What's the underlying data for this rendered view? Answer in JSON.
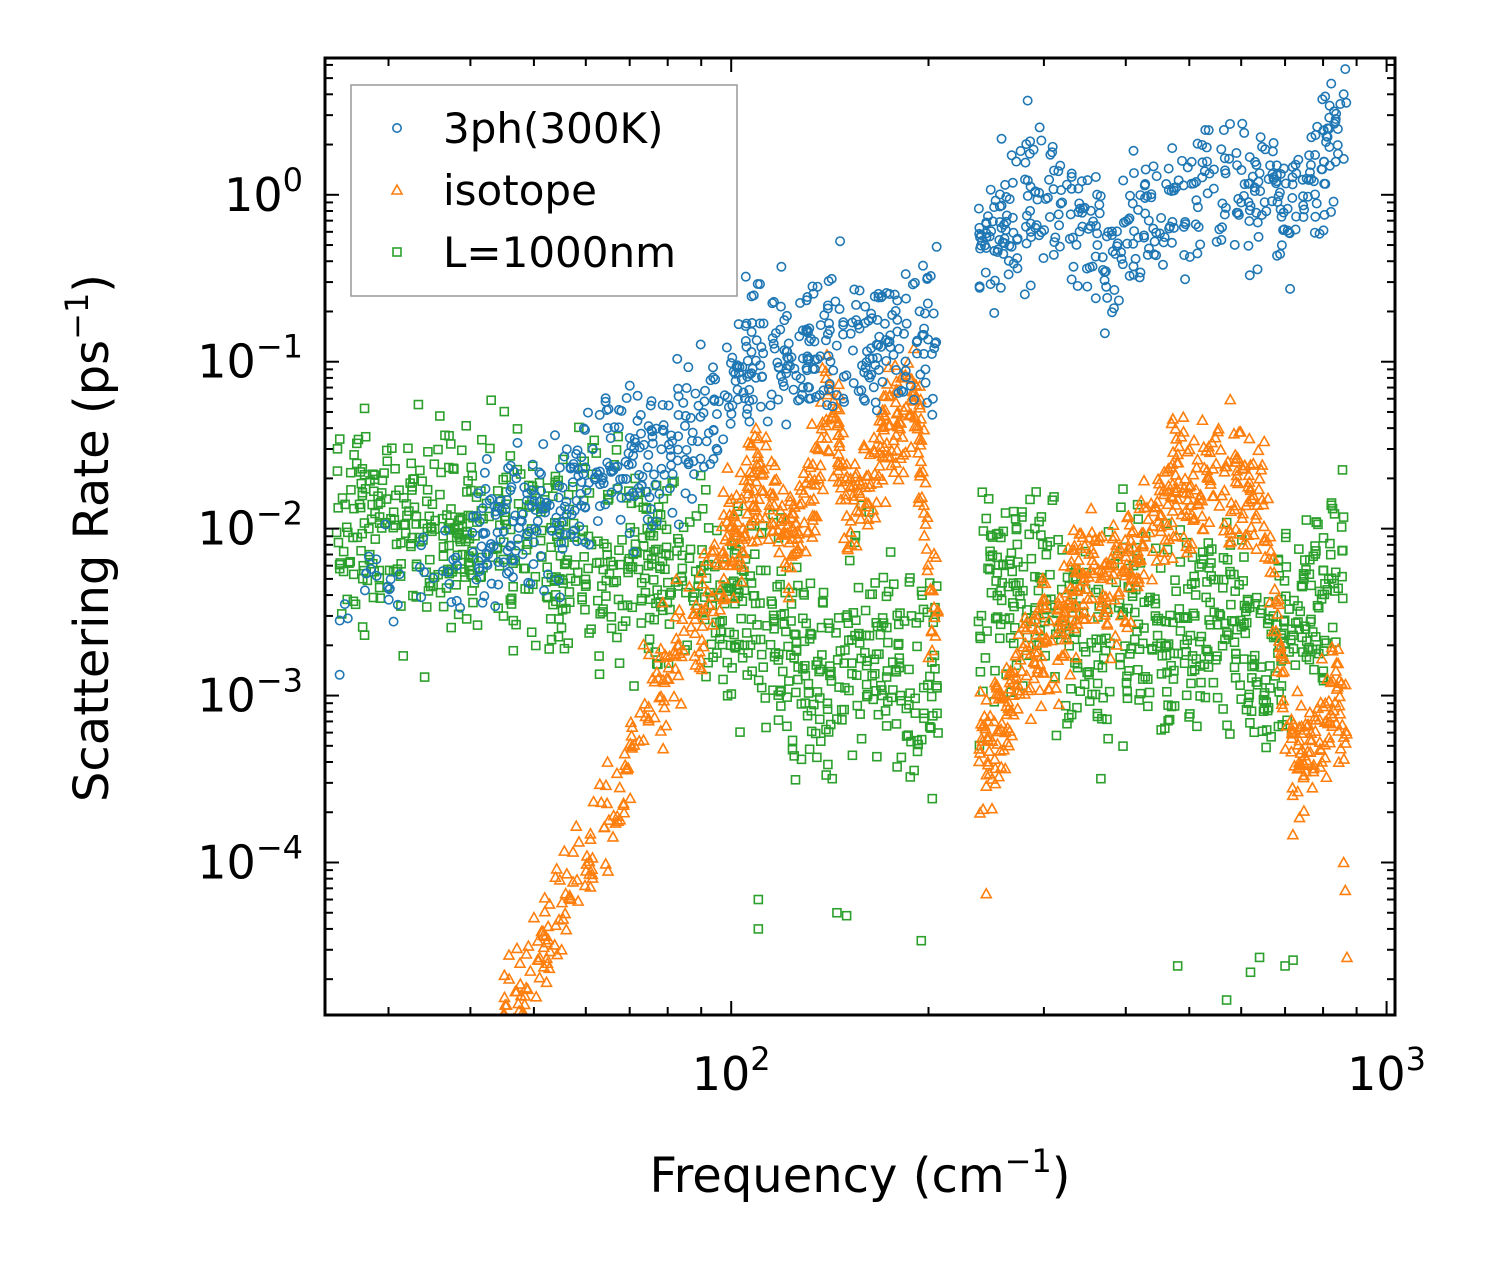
{
  "chart_data": {
    "type": "scatter",
    "xscale": "log",
    "yscale": "log",
    "xlabel": "Frequency (cm",
    "xlabel_sup": "−1",
    "xlabel_tail": ")",
    "ylabel": "Scattering Rate (ps",
    "ylabel_sup": "−1",
    "ylabel_tail": ")",
    "xlim": [
      24.0,
      1030.0
    ],
    "ylim": [
      1.22e-05,
      6.6
    ],
    "x_ticks": [
      {
        "value": 100,
        "base": "10",
        "exp": "2"
      },
      {
        "value": 1000,
        "base": "10",
        "exp": "3"
      }
    ],
    "y_ticks": [
      {
        "value": 1,
        "base": "10",
        "exp": "0"
      },
      {
        "value": 0.1,
        "base": "10",
        "exp": "−1"
      },
      {
        "value": 0.01,
        "base": "10",
        "exp": "−2"
      },
      {
        "value": 0.001,
        "base": "10",
        "exp": "−3"
      },
      {
        "value": 0.0001,
        "base": "10",
        "exp": "−4"
      }
    ],
    "legend_position": "top-left",
    "series": [
      {
        "name": "3ph(300K)",
        "marker": "circle",
        "color": "#1f77b4",
        "trend": [
          [
            25,
            0.0029
          ],
          [
            28,
            0.0065
          ],
          [
            32,
            0.0035
          ],
          [
            35,
            0.006
          ],
          [
            40,
            0.007
          ],
          [
            45,
            0.01
          ],
          [
            50,
            0.011
          ],
          [
            55,
            0.014
          ],
          [
            60,
            0.018
          ],
          [
            65,
            0.022
          ],
          [
            70,
            0.026
          ],
          [
            75,
            0.025
          ],
          [
            80,
            0.03
          ],
          [
            85,
            0.036
          ],
          [
            90,
            0.045
          ],
          [
            95,
            0.06
          ],
          [
            100,
            0.075
          ],
          [
            105,
            0.095
          ],
          [
            110,
            0.115
          ],
          [
            115,
            0.12
          ],
          [
            120,
            0.11
          ],
          [
            125,
            0.095
          ],
          [
            130,
            0.1
          ],
          [
            135,
            0.12
          ],
          [
            140,
            0.14
          ],
          [
            145,
            0.13
          ],
          [
            150,
            0.12
          ],
          [
            160,
            0.145
          ],
          [
            170,
            0.155
          ],
          [
            180,
            0.16
          ],
          [
            190,
            0.18
          ],
          [
            200,
            0.19
          ],
          [
            205,
            0.17
          ],
          [
            240,
            0.5
          ],
          [
            260,
            0.65
          ],
          [
            280,
            0.85
          ],
          [
            300,
            1.0
          ],
          [
            320,
            0.9
          ],
          [
            340,
            0.7
          ],
          [
            360,
            0.55
          ],
          [
            380,
            0.45
          ],
          [
            400,
            0.6
          ],
          [
            420,
            0.8
          ],
          [
            450,
            0.75
          ],
          [
            480,
            0.9
          ],
          [
            500,
            1.0
          ],
          [
            530,
            1.1
          ],
          [
            560,
            1.0
          ],
          [
            600,
            1.2
          ],
          [
            640,
            1.1
          ],
          [
            680,
            0.9
          ],
          [
            720,
            0.8
          ],
          [
            760,
            1.0
          ],
          [
            800,
            1.5
          ],
          [
            840,
            2.5
          ],
          [
            870,
            2.8
          ]
        ],
        "spread_decades": 0.22,
        "extra_points": [
          [
            26,
            0.0029
          ],
          [
            28,
            0.0068
          ],
          [
            31,
            0.0035
          ],
          [
            34,
            0.0055
          ],
          [
            37,
            0.0055
          ],
          [
            44,
            0.0095
          ],
          [
            44,
            0.0135
          ],
          [
            47,
            0.02
          ],
          [
            50,
            0.0145
          ],
          [
            52,
            0.0125
          ],
          [
            58,
            0.028
          ],
          [
            63,
            0.048
          ],
          [
            65,
            0.052
          ],
          [
            140,
            0.055
          ],
          [
            180,
            0.065
          ],
          [
            245,
            0.48
          ],
          [
            360,
            0.24
          ],
          [
            420,
            0.32
          ],
          [
            600,
            0.9
          ],
          [
            680,
            1.5
          ],
          [
            860,
            4.0
          ],
          [
            850,
            3.5
          ]
        ]
      },
      {
        "name": "isotope",
        "marker": "triangle",
        "color": "#ff7f0e",
        "trend": [
          [
            45,
            1.25e-05
          ],
          [
            50,
            2.5e-05
          ],
          [
            55,
            5e-05
          ],
          [
            60,
            0.0001
          ],
          [
            65,
            0.0002
          ],
          [
            70,
            0.0004
          ],
          [
            75,
            0.0008
          ],
          [
            80,
            0.0014
          ],
          [
            85,
            0.002
          ],
          [
            90,
            0.003
          ],
          [
            95,
            0.005
          ],
          [
            100,
            0.008
          ],
          [
            105,
            0.012
          ],
          [
            110,
            0.02
          ],
          [
            115,
            0.015
          ],
          [
            120,
            0.01
          ],
          [
            125,
            0.01
          ],
          [
            130,
            0.012
          ],
          [
            135,
            0.02
          ],
          [
            140,
            0.05
          ],
          [
            145,
            0.04
          ],
          [
            150,
            0.012
          ],
          [
            160,
            0.02
          ],
          [
            170,
            0.035
          ],
          [
            180,
            0.045
          ],
          [
            190,
            0.06
          ],
          [
            195,
            0.03
          ],
          [
            200,
            0.005
          ],
          [
            240,
            0.0004
          ],
          [
            260,
            0.0008
          ],
          [
            280,
            0.0015
          ],
          [
            300,
            0.002
          ],
          [
            320,
            0.003
          ],
          [
            340,
            0.005
          ],
          [
            360,
            0.006
          ],
          [
            380,
            0.004
          ],
          [
            400,
            0.006
          ],
          [
            430,
            0.01
          ],
          [
            460,
            0.015
          ],
          [
            480,
            0.02
          ],
          [
            500,
            0.015
          ],
          [
            520,
            0.018
          ],
          [
            560,
            0.02
          ],
          [
            600,
            0.018
          ],
          [
            640,
            0.015
          ],
          [
            680,
            0.003
          ],
          [
            720,
            0.0005
          ],
          [
            760,
            0.0004
          ],
          [
            800,
            0.0008
          ],
          [
            840,
            0.001
          ],
          [
            870,
            0.0006
          ]
        ],
        "spread_decades": 0.18,
        "extra_points": [
          [
            45,
            1.25e-05
          ],
          [
            48,
            1.25e-05
          ],
          [
            140,
            0.11
          ],
          [
            190,
            0.12
          ],
          [
            245,
            6.5e-05
          ],
          [
            250,
            0.00021
          ],
          [
            490,
            0.038
          ],
          [
            870,
            2.7e-05
          ],
          [
            865,
            6.8e-05
          ],
          [
            860,
            0.0001
          ]
        ]
      },
      {
        "name": "L=1000nm",
        "marker": "square",
        "color": "#2ca02c",
        "trend": [
          [
            25,
            0.0095
          ],
          [
            30,
            0.0095
          ],
          [
            40,
            0.0095
          ],
          [
            50,
            0.008
          ],
          [
            60,
            0.0075
          ],
          [
            70,
            0.0065
          ],
          [
            80,
            0.006
          ],
          [
            90,
            0.005
          ],
          [
            100,
            0.004
          ],
          [
            110,
            0.003
          ],
          [
            120,
            0.0022
          ],
          [
            130,
            0.0015
          ],
          [
            140,
            0.0012
          ],
          [
            150,
            0.0018
          ],
          [
            160,
            0.0025
          ],
          [
            170,
            0.0018
          ],
          [
            180,
            0.0015
          ],
          [
            190,
            0.0012
          ],
          [
            200,
            0.0018
          ],
          [
            205,
            0.0012
          ],
          [
            240,
            0.003
          ],
          [
            260,
            0.005
          ],
          [
            280,
            0.005
          ],
          [
            300,
            0.004
          ],
          [
            320,
            0.003
          ],
          [
            340,
            0.0025
          ],
          [
            360,
            0.0015
          ],
          [
            380,
            0.0025
          ],
          [
            400,
            0.004
          ],
          [
            430,
            0.003
          ],
          [
            460,
            0.002
          ],
          [
            500,
            0.0025
          ],
          [
            540,
            0.003
          ],
          [
            580,
            0.0025
          ],
          [
            620,
            0.002
          ],
          [
            660,
            0.0012
          ],
          [
            700,
            0.0025
          ],
          [
            740,
            0.003
          ],
          [
            780,
            0.004
          ],
          [
            820,
            0.0045
          ],
          [
            870,
            0.004
          ]
        ],
        "spread_decades": 0.3,
        "extra_points": [
          [
            25,
            0.0095
          ],
          [
            26,
            0.0095
          ],
          [
            28,
            0.01
          ],
          [
            32,
            0.012
          ],
          [
            35,
            0.014
          ],
          [
            110,
            4e-05
          ],
          [
            110,
            6e-05
          ],
          [
            145,
            5e-05
          ],
          [
            150,
            4.8e-05
          ],
          [
            195,
            3.4e-05
          ],
          [
            240,
            0.0022
          ],
          [
            245,
            0.0115
          ],
          [
            480,
            2.4e-05
          ],
          [
            570,
            1.5e-05
          ],
          [
            620,
            2.2e-05
          ],
          [
            640,
            2.7e-05
          ],
          [
            700,
            2.4e-05
          ],
          [
            720,
            2.6e-05
          ]
        ]
      }
    ]
  }
}
